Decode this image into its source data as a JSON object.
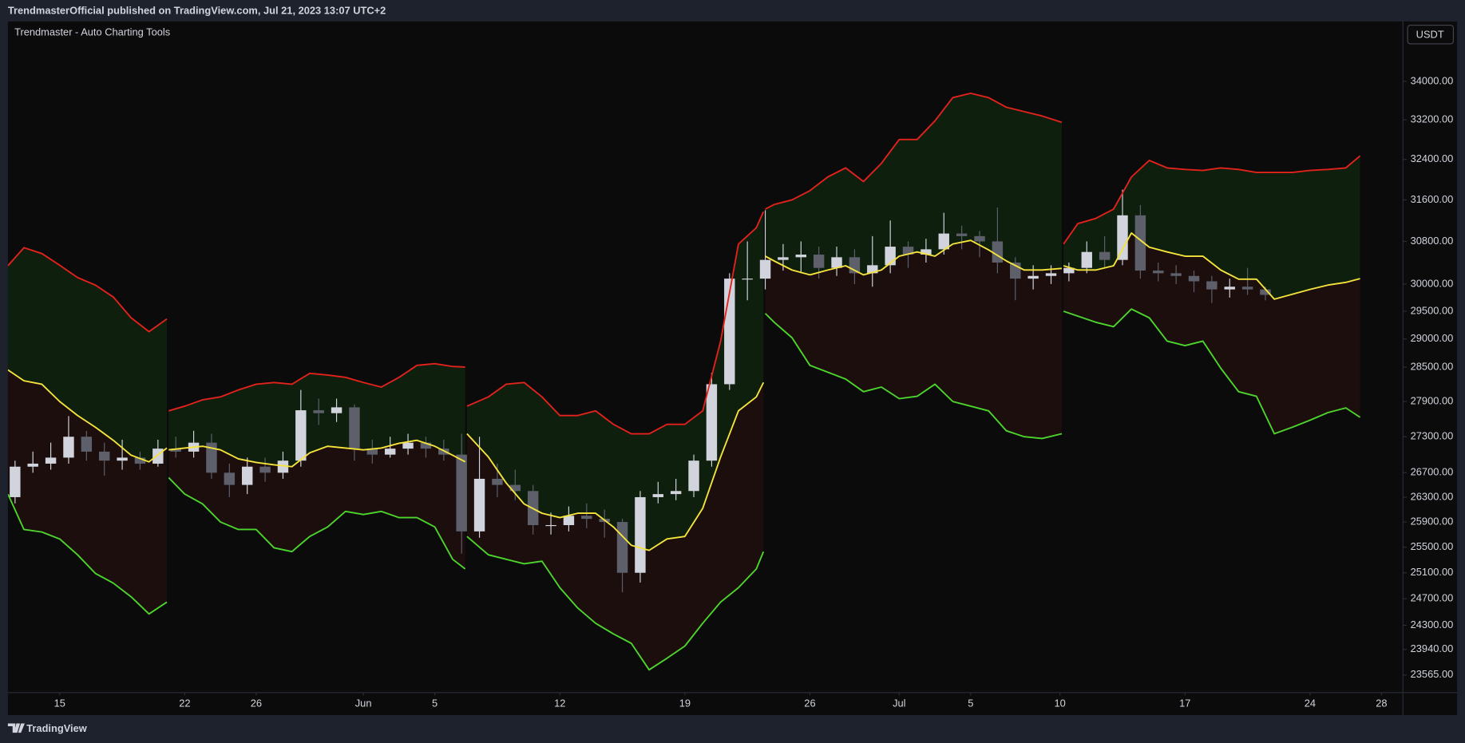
{
  "header": "TrendmasterOfficial published on TradingView.com, Jul 21, 2023 13:07 UTC+2",
  "footer": "TradingView",
  "chart_data": {
    "type": "candlestick",
    "title": "Trendmaster - Auto Charting Tools",
    "currency": "USDT",
    "log": true,
    "xlim": [
      12.1,
      90.2
    ],
    "xticks": [
      15,
      22,
      26,
      {
        "value": 32,
        "label": "Jun"
      },
      {
        "value": 36,
        "label": "5"
      },
      {
        "value": 43,
        "label": "12"
      },
      {
        "value": 50,
        "label": "19"
      },
      {
        "value": 57,
        "label": "26"
      },
      {
        "value": 62,
        "label": "Jul"
      },
      {
        "value": 66,
        "label": "5"
      },
      {
        "value": 71,
        "label": "10"
      },
      {
        "value": 78,
        "label": "17"
      },
      {
        "value": 85,
        "label": "24"
      },
      {
        "value": 89,
        "label": "28"
      }
    ],
    "ylim": [
      23310,
      35260
    ],
    "yticks": [
      {
        "value": 34000,
        "label": "34000.00"
      },
      {
        "value": 33200,
        "label": "33200.00"
      },
      {
        "value": 32400,
        "label": "32400.00"
      },
      {
        "value": 31600,
        "label": "31600.00"
      },
      {
        "value": 30800,
        "label": "30800.00"
      },
      {
        "value": 30000,
        "label": "30000.00"
      },
      {
        "value": 29500,
        "label": "29500.00"
      },
      {
        "value": 29000,
        "label": "29000.00"
      },
      {
        "value": 28500,
        "label": "28500.00"
      },
      {
        "value": 27900,
        "label": "27900.00"
      },
      {
        "value": 27300,
        "label": "27300.00"
      },
      {
        "value": 26700,
        "label": "26700.00"
      },
      {
        "value": 26300,
        "label": "26300.00"
      },
      {
        "value": 25900,
        "label": "25900.00"
      },
      {
        "value": 25500,
        "label": "25500.00"
      },
      {
        "value": 25100,
        "label": "25100.00"
      },
      {
        "value": 24700,
        "label": "24700.00"
      },
      {
        "value": 24300,
        "label": "24300.00"
      },
      {
        "value": 23940,
        "label": "23940.00"
      },
      {
        "value": 23565,
        "label": "23565.00"
      }
    ],
    "colors": {
      "up": "#d1d4dc",
      "down": "#5d606b",
      "upper": "#e3221c",
      "middle": "#f5e43b",
      "lower": "#4cd62c",
      "upper_fill": "#0f1f0e",
      "lower_fill": "#1d0e0e"
    },
    "candles": {
      "x": [
        12,
        13,
        14,
        15,
        16,
        17,
        18,
        19,
        20,
        21,
        22,
        23,
        24,
        25,
        26,
        27,
        28,
        29,
        30,
        31,
        32,
        33,
        34,
        35,
        36,
        37,
        38,
        39,
        40,
        41,
        42,
        43,
        44,
        45,
        46,
        47,
        48,
        49,
        50,
        51,
        52,
        53,
        54,
        55,
        56,
        57,
        58,
        59,
        60,
        61,
        62,
        63,
        64,
        65,
        66,
        67,
        68,
        69,
        70,
        71,
        72,
        73,
        74,
        75,
        76,
        77,
        78,
        79,
        80,
        81,
        82
      ],
      "open": [
        26300,
        26800,
        26850,
        26950,
        27300,
        27050,
        26900,
        26950,
        26850,
        27100,
        27050,
        27200,
        26700,
        26500,
        26800,
        26700,
        26900,
        27750,
        27700,
        27800,
        27100,
        27000,
        27100,
        27200,
        27100,
        27000,
        25750,
        26600,
        26500,
        26400,
        25850,
        25850,
        26000,
        25950,
        25900,
        25100,
        26300,
        26350,
        26400,
        26900,
        28200,
        30100,
        30100,
        30450,
        30500,
        30550,
        30300,
        30500,
        30200,
        30350,
        30700,
        30550,
        30650,
        30950,
        30900,
        30800,
        30400,
        30100,
        30150,
        30200,
        30300,
        30600,
        30450,
        31300,
        30250,
        30200,
        30150,
        30050,
        29900,
        29950,
        29900
      ],
      "high": [
        26900,
        27050,
        27200,
        27650,
        27400,
        27200,
        27250,
        27050,
        27250,
        27300,
        27400,
        27350,
        26850,
        26950,
        26950,
        27050,
        28100,
        27950,
        27950,
        27850,
        27250,
        27300,
        27350,
        27300,
        27250,
        27350,
        27300,
        26850,
        26750,
        26500,
        26050,
        26150,
        26200,
        26100,
        25950,
        26400,
        26550,
        26600,
        27000,
        28400,
        30200,
        30800,
        31400,
        30750,
        30800,
        30700,
        30700,
        30650,
        30900,
        31200,
        30800,
        30850,
        31350,
        31100,
        31000,
        31450,
        30500,
        30350,
        30350,
        30400,
        30800,
        30900,
        31800,
        31500,
        30400,
        30350,
        30250,
        30150,
        30100,
        30300,
        29950
      ],
      "low": [
        26200,
        26700,
        26750,
        26850,
        26900,
        26650,
        26750,
        26750,
        26800,
        26950,
        26950,
        26600,
        26300,
        26350,
        26550,
        26600,
        26800,
        27500,
        27550,
        26900,
        26850,
        26950,
        27000,
        26950,
        26900,
        25400,
        25650,
        26300,
        26250,
        25700,
        25700,
        25750,
        25800,
        25650,
        24800,
        24950,
        26200,
        26250,
        26300,
        26800,
        28100,
        29700,
        29900,
        30250,
        30200,
        30100,
        30150,
        30000,
        29950,
        30200,
        30300,
        30400,
        30550,
        30650,
        30500,
        30200,
        29700,
        29900,
        30000,
        30050,
        30200,
        30300,
        30350,
        30100,
        30050,
        30000,
        29850,
        29650,
        29750,
        29800,
        29700
      ],
      "close": [
        26800,
        26850,
        26950,
        27300,
        27050,
        26900,
        26950,
        26850,
        27100,
        27050,
        27200,
        26700,
        26500,
        26800,
        26700,
        26900,
        27750,
        27700,
        27800,
        27100,
        27000,
        27100,
        27200,
        27100,
        27000,
        25750,
        26600,
        26500,
        26400,
        25850,
        25850,
        26000,
        25950,
        25900,
        25100,
        26300,
        26350,
        26400,
        26900,
        28200,
        30100,
        30100,
        30450,
        30500,
        30550,
        30300,
        30500,
        30200,
        30350,
        30700,
        30550,
        30650,
        30950,
        30900,
        30800,
        30400,
        30100,
        30150,
        30200,
        30300,
        30600,
        30450,
        31300,
        30250,
        30200,
        30150,
        30050,
        29900,
        29950,
        29900,
        29800
      ]
    },
    "bands": [
      {
        "x": [
          12.1,
          13,
          14,
          15,
          16,
          17,
          18,
          19,
          20,
          21
        ],
        "upper": [
          30340,
          30680,
          30570,
          30350,
          30120,
          29980,
          29760,
          29380,
          29130,
          29360
        ],
        "middle": [
          28450,
          28260,
          28200,
          27900,
          27660,
          27460,
          27240,
          26990,
          26880,
          27110
        ],
        "lower": [
          26350,
          25780,
          25740,
          25630,
          25380,
          25090,
          24940,
          24730,
          24470,
          24650
        ]
      },
      {
        "x": [
          21.1,
          22,
          23,
          24,
          25,
          26,
          27,
          28,
          29,
          30,
          31,
          32,
          33,
          34,
          35,
          36,
          37,
          37.7
        ],
        "upper": [
          27740,
          27820,
          27930,
          27980,
          28100,
          28200,
          28230,
          28200,
          28390,
          28360,
          28320,
          28230,
          28150,
          28320,
          28530,
          28560,
          28510,
          28500
        ],
        "middle": [
          27080,
          27110,
          27140,
          27080,
          26930,
          26870,
          26830,
          26800,
          27030,
          27140,
          27110,
          27080,
          27110,
          27190,
          27240,
          27140,
          26990,
          26880
        ],
        "lower": [
          26620,
          26350,
          26190,
          25900,
          25780,
          25780,
          25490,
          25430,
          25670,
          25820,
          26070,
          26020,
          26070,
          25970,
          25970,
          25820,
          25310,
          25160
        ]
      },
      {
        "x": [
          37.8,
          39,
          40,
          41,
          42,
          43,
          44,
          45,
          46,
          47,
          48,
          49,
          50,
          51,
          52,
          53,
          54,
          54.4
        ],
        "upper": [
          27820,
          27980,
          28200,
          28230,
          27980,
          27660,
          27660,
          27740,
          27510,
          27350,
          27350,
          27510,
          27510,
          27740,
          28960,
          30750,
          31060,
          31370
        ],
        "middle": [
          27350,
          26960,
          26530,
          26190,
          26040,
          25970,
          26040,
          26040,
          25820,
          25530,
          25450,
          25630,
          25670,
          26120,
          26960,
          27740,
          27980,
          28230
        ],
        "lower": [
          25670,
          25380,
          25310,
          25240,
          25280,
          24870,
          24560,
          24330,
          24170,
          24030,
          23640,
          23810,
          23990,
          24330,
          24650,
          24870,
          25160,
          25430
        ]
      },
      {
        "x": [
          54.5,
          55,
          56,
          57,
          58,
          59,
          60,
          61,
          62,
          63,
          64,
          65,
          66,
          67,
          68,
          69,
          70,
          71.1
        ],
        "upper": [
          31420,
          31510,
          31600,
          31780,
          32050,
          32230,
          31960,
          32320,
          32800,
          32800,
          33180,
          33660,
          33750,
          33660,
          33460,
          33370,
          33280,
          33150
        ],
        "middle": [
          30520,
          30430,
          30260,
          30170,
          30260,
          30340,
          30170,
          30260,
          30520,
          30600,
          30520,
          30750,
          30820,
          30640,
          30430,
          30260,
          30260,
          30290
        ],
        "lower": [
          29460,
          29300,
          29020,
          28530,
          28410,
          28290,
          28070,
          28150,
          27950,
          27990,
          28200,
          27900,
          27820,
          27740,
          27400,
          27300,
          27270,
          27350
        ]
      },
      {
        "x": [
          71.2,
          72,
          73,
          74,
          75,
          76,
          77,
          78,
          79,
          80,
          81,
          82,
          83,
          84,
          85,
          86,
          87,
          87.8
        ],
        "upper": [
          30750,
          31140,
          31240,
          31420,
          32050,
          32380,
          32230,
          32200,
          32180,
          32230,
          32200,
          32140,
          32140,
          32140,
          32180,
          32200,
          32230,
          32470
        ],
        "middle": [
          30340,
          30260,
          30260,
          30340,
          30960,
          30690,
          30600,
          30520,
          30520,
          30260,
          30090,
          30090,
          29720,
          29810,
          29900,
          29980,
          30030,
          30100
        ],
        "lower": [
          29500,
          29410,
          29300,
          29220,
          29540,
          29380,
          28960,
          28880,
          28960,
          28480,
          28070,
          27990,
          27350,
          27460,
          27580,
          27710,
          27790,
          27630
        ]
      }
    ]
  }
}
